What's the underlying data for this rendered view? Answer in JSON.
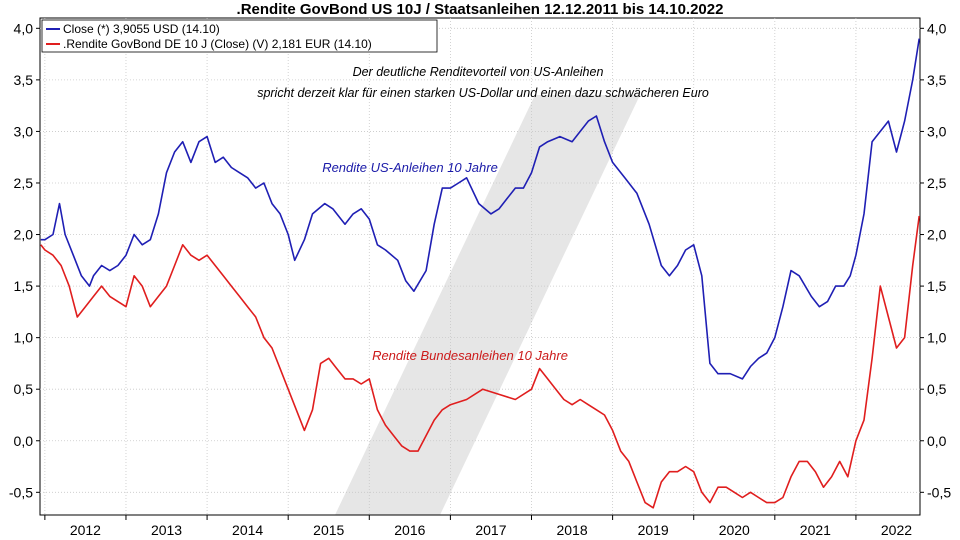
{
  "chart_data": {
    "type": "line",
    "title": ".Rendite GovBond US 10J / Staatsanleihen 12.12.2011 bis 14.10.2022",
    "x_tick_labels": [
      "2012",
      "2013",
      "2014",
      "2015",
      "2016",
      "2017",
      "2018",
      "2019",
      "2020",
      "2021",
      "2022"
    ],
    "y_tick_labels": [
      "4,0",
      "3,5",
      "3,0",
      "2,5",
      "2,0",
      "1,5",
      "1,0",
      "0,5",
      "0,0",
      "-0,5"
    ],
    "y_tick_values": [
      4.0,
      3.5,
      3.0,
      2.5,
      2.0,
      1.5,
      1.0,
      0.5,
      0.0,
      -0.5
    ],
    "ylim": [
      -0.72,
      4.1
    ],
    "xlim": [
      2011.94,
      2022.79
    ],
    "grid": true,
    "legend_position": "top-left",
    "series": [
      {
        "name": "US",
        "legend": "Close (*) 3,9055 USD (14.10)",
        "color": "#1f1fb4",
        "x": [
          2011.95,
          2012.0,
          2012.1,
          2012.18,
          2012.25,
          2012.35,
          2012.45,
          2012.55,
          2012.6,
          2012.7,
          2012.8,
          2012.9,
          2013.0,
          2013.1,
          2013.2,
          2013.3,
          2013.4,
          2013.5,
          2013.6,
          2013.7,
          2013.8,
          2013.9,
          2014.0,
          2014.1,
          2014.2,
          2014.3,
          2014.4,
          2014.5,
          2014.6,
          2014.7,
          2014.8,
          2014.9,
          2015.0,
          2015.08,
          2015.2,
          2015.3,
          2015.45,
          2015.55,
          2015.7,
          2015.8,
          2015.9,
          2016.0,
          2016.1,
          2016.2,
          2016.35,
          2016.45,
          2016.55,
          2016.7,
          2016.8,
          2016.9,
          2017.0,
          2017.1,
          2017.2,
          2017.35,
          2017.5,
          2017.6,
          2017.7,
          2017.8,
          2017.9,
          2018.0,
          2018.1,
          2018.2,
          2018.35,
          2018.5,
          2018.6,
          2018.7,
          2018.8,
          2018.9,
          2019.0,
          2019.15,
          2019.3,
          2019.45,
          2019.6,
          2019.7,
          2019.8,
          2019.9,
          2020.0,
          2020.1,
          2020.17,
          2020.2,
          2020.3,
          2020.45,
          2020.6,
          2020.7,
          2020.8,
          2020.9,
          2021.0,
          2021.1,
          2021.2,
          2021.3,
          2021.45,
          2021.55,
          2021.65,
          2021.75,
          2021.85,
          2021.93,
          2022.0,
          2022.1,
          2022.2,
          2022.3,
          2022.4,
          2022.5,
          2022.6,
          2022.7,
          2022.78
        ],
        "y": [
          1.95,
          1.95,
          2.0,
          2.3,
          2.0,
          1.8,
          1.6,
          1.5,
          1.6,
          1.7,
          1.65,
          1.7,
          1.8,
          2.0,
          1.9,
          1.95,
          2.2,
          2.6,
          2.8,
          2.9,
          2.7,
          2.9,
          2.95,
          2.7,
          2.75,
          2.65,
          2.6,
          2.55,
          2.45,
          2.5,
          2.3,
          2.2,
          2.0,
          1.75,
          1.95,
          2.2,
          2.3,
          2.25,
          2.1,
          2.2,
          2.25,
          2.15,
          1.9,
          1.85,
          1.75,
          1.55,
          1.45,
          1.65,
          2.1,
          2.45,
          2.45,
          2.5,
          2.55,
          2.3,
          2.2,
          2.25,
          2.35,
          2.45,
          2.45,
          2.6,
          2.85,
          2.9,
          2.95,
          2.9,
          3.0,
          3.1,
          3.15,
          2.9,
          2.7,
          2.55,
          2.4,
          2.1,
          1.7,
          1.6,
          1.7,
          1.85,
          1.9,
          1.6,
          1.0,
          0.75,
          0.65,
          0.65,
          0.6,
          0.72,
          0.8,
          0.85,
          1.0,
          1.3,
          1.65,
          1.6,
          1.4,
          1.3,
          1.35,
          1.5,
          1.5,
          1.6,
          1.8,
          2.2,
          2.9,
          3.0,
          3.1,
          2.8,
          3.1,
          3.5,
          3.9
        ]
      },
      {
        "name": "DE",
        "legend": ".Rendite GovBond DE 10 J (Close) (V) 2,181 EUR (14.10)",
        "color": "#e01e1e",
        "x": [
          2011.95,
          2012.0,
          2012.1,
          2012.2,
          2012.3,
          2012.4,
          2012.5,
          2012.6,
          2012.7,
          2012.8,
          2012.9,
          2013.0,
          2013.1,
          2013.2,
          2013.3,
          2013.4,
          2013.5,
          2013.6,
          2013.7,
          2013.8,
          2013.9,
          2014.0,
          2014.1,
          2014.2,
          2014.3,
          2014.4,
          2014.5,
          2014.6,
          2014.7,
          2014.8,
          2014.9,
          2015.0,
          2015.1,
          2015.2,
          2015.3,
          2015.4,
          2015.5,
          2015.6,
          2015.7,
          2015.8,
          2015.9,
          2016.0,
          2016.1,
          2016.2,
          2016.3,
          2016.4,
          2016.5,
          2016.6,
          2016.7,
          2016.8,
          2016.9,
          2017.0,
          2017.2,
          2017.4,
          2017.6,
          2017.8,
          2018.0,
          2018.1,
          2018.2,
          2018.3,
          2018.4,
          2018.5,
          2018.6,
          2018.7,
          2018.8,
          2018.9,
          2019.0,
          2019.1,
          2019.2,
          2019.3,
          2019.4,
          2019.5,
          2019.6,
          2019.7,
          2019.8,
          2019.9,
          2020.0,
          2020.1,
          2020.2,
          2020.3,
          2020.4,
          2020.5,
          2020.6,
          2020.7,
          2020.8,
          2020.9,
          2021.0,
          2021.1,
          2021.2,
          2021.3,
          2021.4,
          2021.5,
          2021.6,
          2021.7,
          2021.8,
          2021.9,
          2022.0,
          2022.1,
          2022.2,
          2022.3,
          2022.4,
          2022.5,
          2022.6,
          2022.7,
          2022.78
        ],
        "y": [
          1.9,
          1.85,
          1.8,
          1.7,
          1.5,
          1.2,
          1.3,
          1.4,
          1.5,
          1.4,
          1.35,
          1.3,
          1.6,
          1.5,
          1.3,
          1.4,
          1.5,
          1.7,
          1.9,
          1.8,
          1.75,
          1.8,
          1.7,
          1.6,
          1.5,
          1.4,
          1.3,
          1.2,
          1.0,
          0.9,
          0.7,
          0.5,
          0.3,
          0.1,
          0.3,
          0.75,
          0.8,
          0.7,
          0.6,
          0.6,
          0.55,
          0.6,
          0.3,
          0.15,
          0.05,
          -0.05,
          -0.1,
          -0.1,
          0.05,
          0.2,
          0.3,
          0.35,
          0.4,
          0.5,
          0.45,
          0.4,
          0.5,
          0.7,
          0.6,
          0.5,
          0.4,
          0.35,
          0.4,
          0.35,
          0.3,
          0.25,
          0.1,
          -0.1,
          -0.2,
          -0.4,
          -0.6,
          -0.65,
          -0.4,
          -0.3,
          -0.3,
          -0.25,
          -0.3,
          -0.5,
          -0.6,
          -0.45,
          -0.45,
          -0.5,
          -0.55,
          -0.5,
          -0.55,
          -0.6,
          -0.6,
          -0.55,
          -0.35,
          -0.2,
          -0.2,
          -0.3,
          -0.45,
          -0.35,
          -0.2,
          -0.35,
          0.0,
          0.2,
          0.8,
          1.5,
          1.2,
          0.9,
          1.0,
          1.7,
          2.18
        ]
      }
    ],
    "annotations": [
      {
        "text": "Der deutliche Renditevorteil von US-Anleihen"
      },
      {
        "text": "spricht derzeit klar für einen starken US-Dollar und einen dazu schwächeren Euro"
      },
      {
        "text": "Rendite US-Anleihen 10 Jahre"
      },
      {
        "text": "Rendite Bundesanleihen 10 Jahre"
      }
    ]
  }
}
